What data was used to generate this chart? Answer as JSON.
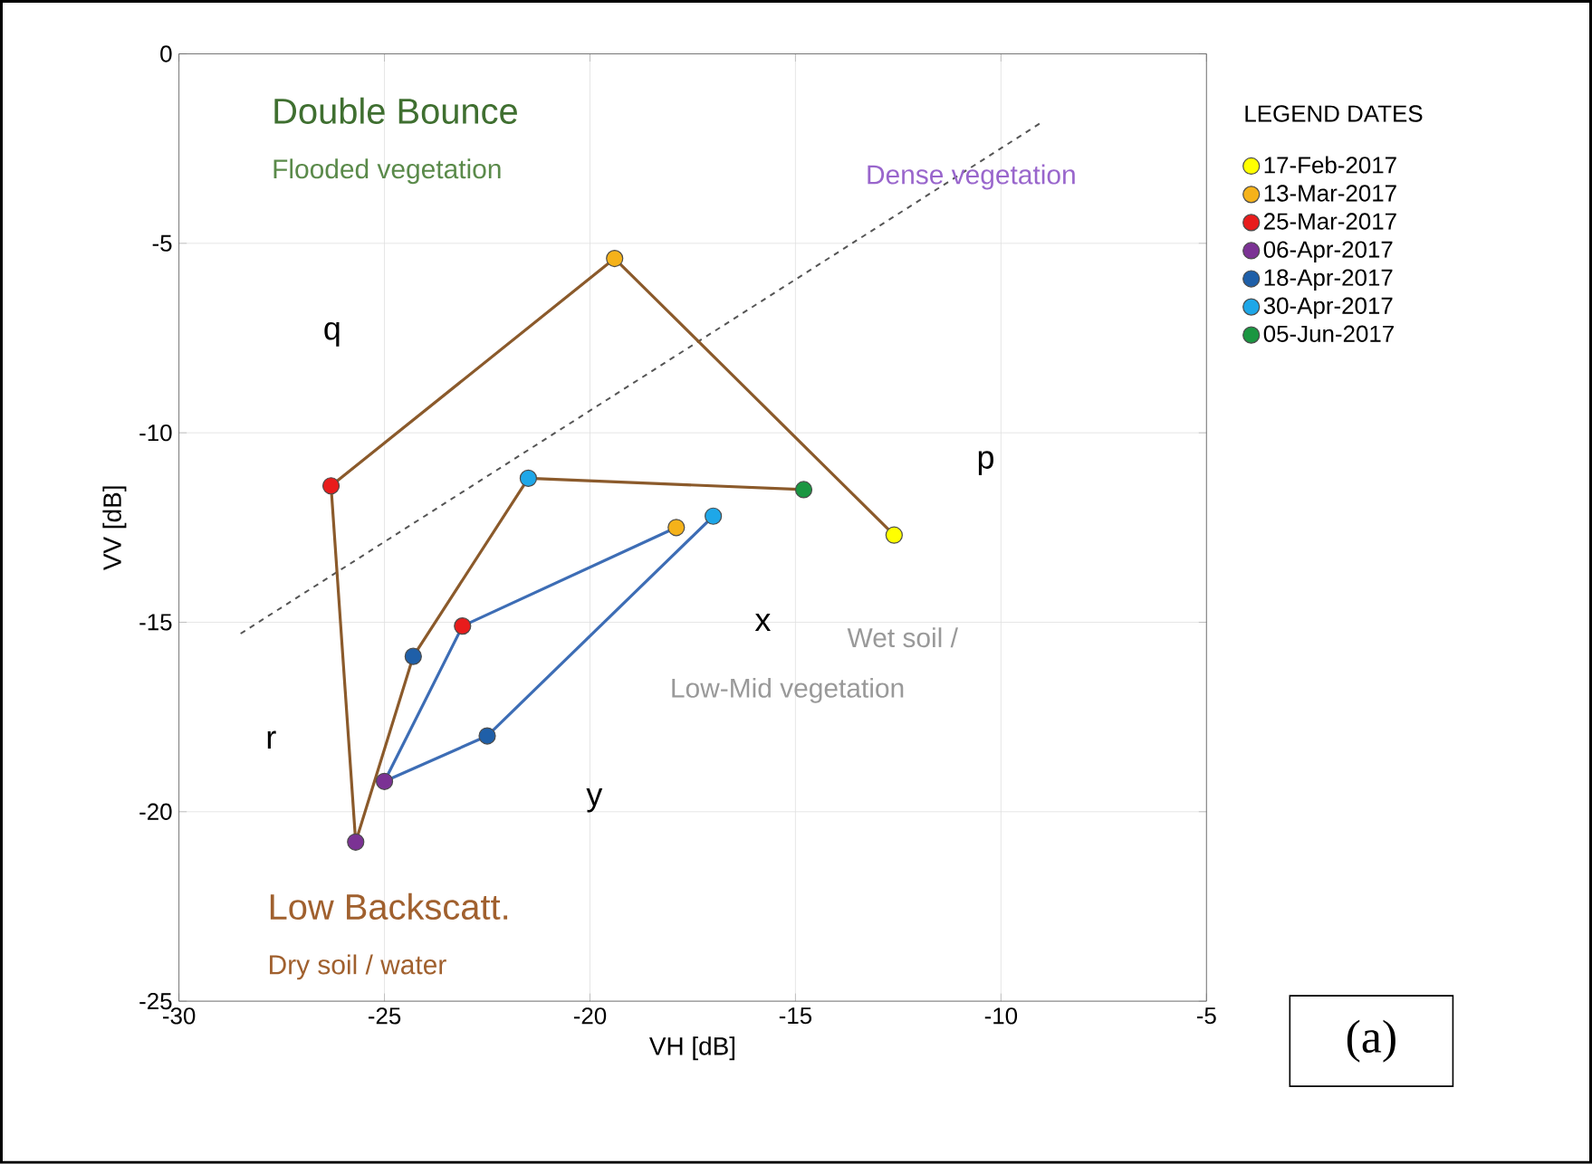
{
  "chart_data": {
    "type": "scatter",
    "xlabel": "VH [dB]",
    "ylabel": "VV [dB]",
    "legend_title": "LEGEND DATES",
    "xlim": [
      -30,
      -5
    ],
    "ylim": [
      -25,
      0
    ],
    "xticks": [
      -30,
      -25,
      -20,
      -15,
      -10,
      -5
    ],
    "yticks": [
      -25,
      -20,
      -15,
      -10,
      -5,
      0
    ],
    "grid": true,
    "legend": "right",
    "series": [
      {
        "type": "line",
        "color": "#555555",
        "line_style": "dashed",
        "marker": "none",
        "x": [
          -28.5,
          -9.0
        ],
        "values": [
          -15.3,
          -1.8
        ]
      },
      {
        "type": "line",
        "color": "#8b5a2b",
        "line_style": "solid",
        "marker": "none",
        "x": [
          -12.6,
          -19.4,
          -26.3,
          -25.7,
          -24.3,
          -21.5,
          -14.8
        ],
        "values": [
          -12.7,
          -5.4,
          -11.4,
          -20.8,
          -15.9,
          -11.2,
          -11.5
        ]
      },
      {
        "type": "line",
        "color": "#3d6db5",
        "line_style": "solid",
        "marker": "none",
        "x": [
          -17.9,
          -23.1,
          -25.0,
          -22.5,
          -17.0
        ],
        "values": [
          -12.5,
          -15.1,
          -19.2,
          -18.0,
          -12.2
        ]
      },
      {
        "name": "17-Feb-2017",
        "color": "#ffff00",
        "marker": "circle",
        "x": [
          -12.6
        ],
        "values": [
          -12.7
        ]
      },
      {
        "name": "13-Mar-2017",
        "color": "#f5b21a",
        "marker": "circle",
        "x": [
          -19.4,
          -17.9
        ],
        "values": [
          -5.4,
          -12.5
        ]
      },
      {
        "name": "25-Mar-2017",
        "color": "#e81c1c",
        "marker": "circle",
        "x": [
          -26.3,
          -23.1
        ],
        "values": [
          -11.4,
          -15.1
        ]
      },
      {
        "name": "06-Apr-2017",
        "color": "#7b3294",
        "marker": "circle",
        "x": [
          -25.7,
          -25.0
        ],
        "values": [
          -20.8,
          -19.2
        ]
      },
      {
        "name": "18-Apr-2017",
        "color": "#1f5fa8",
        "marker": "circle",
        "x": [
          -24.3,
          -22.5
        ],
        "values": [
          -15.9,
          -18.0
        ]
      },
      {
        "name": "30-Apr-2017",
        "color": "#1ea7e8",
        "marker": "circle",
        "x": [
          -21.5,
          -17.0
        ],
        "values": [
          -11.2,
          -12.2
        ]
      },
      {
        "name": "05-Jun-2017",
        "color": "#1a9641",
        "marker": "circle",
        "x": [
          -14.8
        ],
        "values": [
          -11.5
        ]
      }
    ],
    "annotations": [
      "Double Bounce",
      "Flooded vegetation",
      "Dense vegetation",
      "Wet soil /",
      "Low-Mid vegetation",
      "Low Backscatt.",
      "Dry soil / water",
      "q",
      "p",
      "r",
      "x",
      "y",
      "(a)"
    ]
  }
}
